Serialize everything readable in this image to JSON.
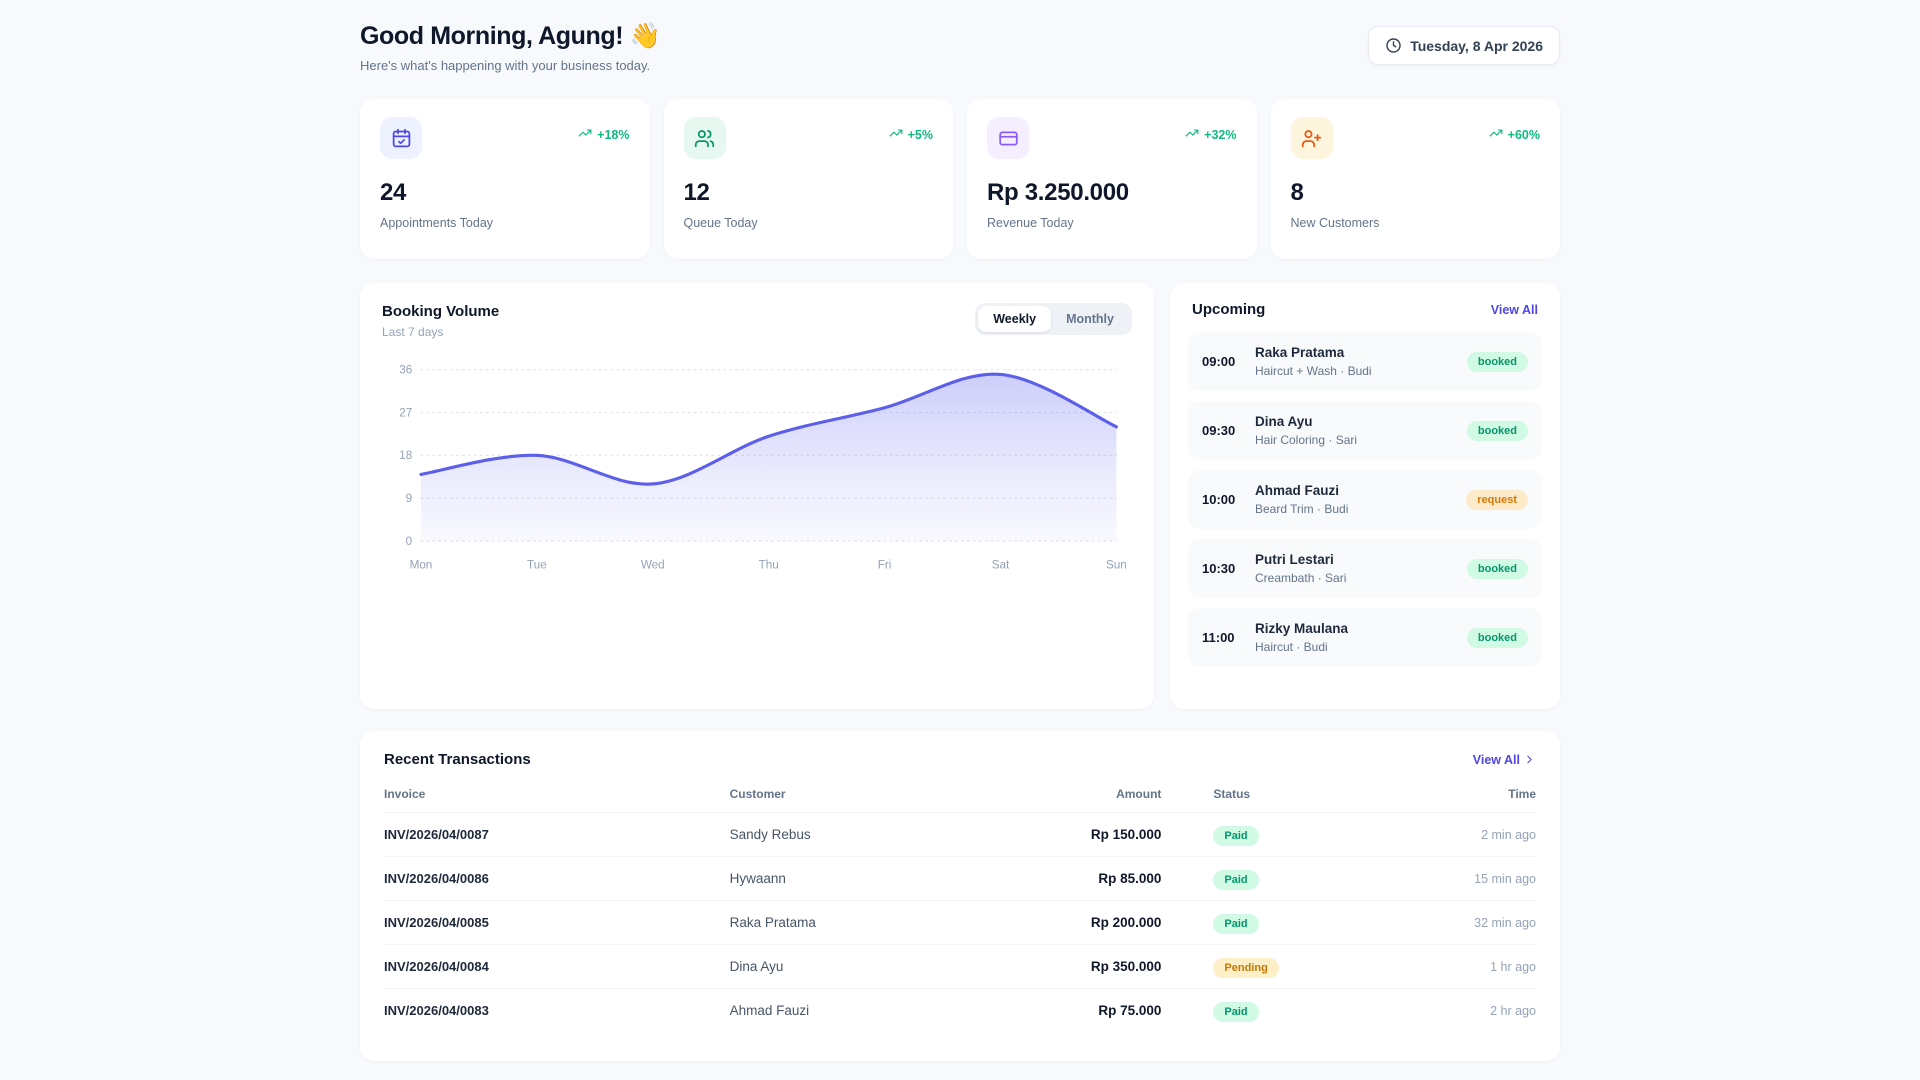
{
  "header": {
    "greeting": "Good Morning, Agung! 👋",
    "subtitle": "Here's what's happening with your business today.",
    "date": "Tuesday, 8 Apr 2026",
    "date_icon": "clock-icon"
  },
  "stats": [
    {
      "icon": "calendar-check-icon",
      "icon_color": "#4f46e5",
      "icon_bg": "#eef2ff",
      "trend": "+18%",
      "value": "24",
      "label": "Appointments Today"
    },
    {
      "icon": "users-icon",
      "icon_color": "#059669",
      "icon_bg": "#e6f8ef",
      "trend": "+5%",
      "value": "12",
      "label": "Queue Today"
    },
    {
      "icon": "credit-card-icon",
      "icon_color": "#8b5cf6",
      "icon_bg": "#f4eefe",
      "trend": "+32%",
      "value": "Rp 3.250.000",
      "label": "Revenue Today"
    },
    {
      "icon": "user-plus-icon",
      "icon_color": "#ea580c",
      "icon_bg": "#fdf5dd",
      "trend": "+60%",
      "value": "8",
      "label": "New Customers"
    }
  ],
  "chart_card": {
    "title": "Booking Volume",
    "subtitle": "Last 7 days",
    "toggle_options": [
      "Weekly",
      "Monthly"
    ],
    "toggle_active": "Weekly"
  },
  "chart_data": {
    "type": "area",
    "title": "Booking Volume",
    "x": [
      "Mon",
      "Tue",
      "Wed",
      "Thu",
      "Fri",
      "Sat",
      "Sun"
    ],
    "values": [
      14,
      18,
      12,
      22,
      28,
      35,
      24
    ],
    "xlabel": "",
    "ylabel": "",
    "ylim": [
      0,
      36
    ],
    "yticks": [
      0,
      9,
      18,
      27,
      36
    ],
    "grid": "dotted-horizontal",
    "legend": "none",
    "line_color": "#5c5fe9",
    "fill_color": "#6366f1"
  },
  "upcoming": {
    "title": "Upcoming",
    "view_all": "View All",
    "items": [
      {
        "time": "09:00",
        "name": "Raka Pratama",
        "detail": "Haircut + Wash · Budi",
        "status": "booked"
      },
      {
        "time": "09:30",
        "name": "Dina Ayu",
        "detail": "Hair Coloring · Sari",
        "status": "booked"
      },
      {
        "time": "10:00",
        "name": "Ahmad Fauzi",
        "detail": "Beard Trim · Budi",
        "status": "request"
      },
      {
        "time": "10:30",
        "name": "Putri Lestari",
        "detail": "Creambath · Sari",
        "status": "booked"
      },
      {
        "time": "11:00",
        "name": "Rizky Maulana",
        "detail": "Haircut · Budi",
        "status": "booked"
      }
    ]
  },
  "transactions": {
    "title": "Recent Transactions",
    "view_all": "View All",
    "columns": [
      "Invoice",
      "Customer",
      "Amount",
      "Status",
      "Time"
    ],
    "rows": [
      {
        "invoice": "INV/2026/04/0087",
        "customer": "Sandy Rebus",
        "amount": "Rp 150.000",
        "status": "Paid",
        "time": "2 min ago"
      },
      {
        "invoice": "INV/2026/04/0086",
        "customer": "Hywaann",
        "amount": "Rp 85.000",
        "status": "Paid",
        "time": "15 min ago"
      },
      {
        "invoice": "INV/2026/04/0085",
        "customer": "Raka Pratama",
        "amount": "Rp 200.000",
        "status": "Paid",
        "time": "32 min ago"
      },
      {
        "invoice": "INV/2026/04/0084",
        "customer": "Dina Ayu",
        "amount": "Rp 350.000",
        "status": "Pending",
        "time": "1 hr ago"
      },
      {
        "invoice": "INV/2026/04/0083",
        "customer": "Ahmad Fauzi",
        "amount": "Rp 75.000",
        "status": "Paid",
        "time": "2 hr ago"
      }
    ]
  },
  "colors": {
    "accent_indigo": "#4f46e5",
    "trend_green": "#10b981",
    "badge_green_bg": "#d1fae5",
    "badge_green_text": "#059669",
    "badge_amber_bg": "#fdeac8",
    "badge_amber_text": "#d97706",
    "page_bg": "#f7f9fc"
  }
}
